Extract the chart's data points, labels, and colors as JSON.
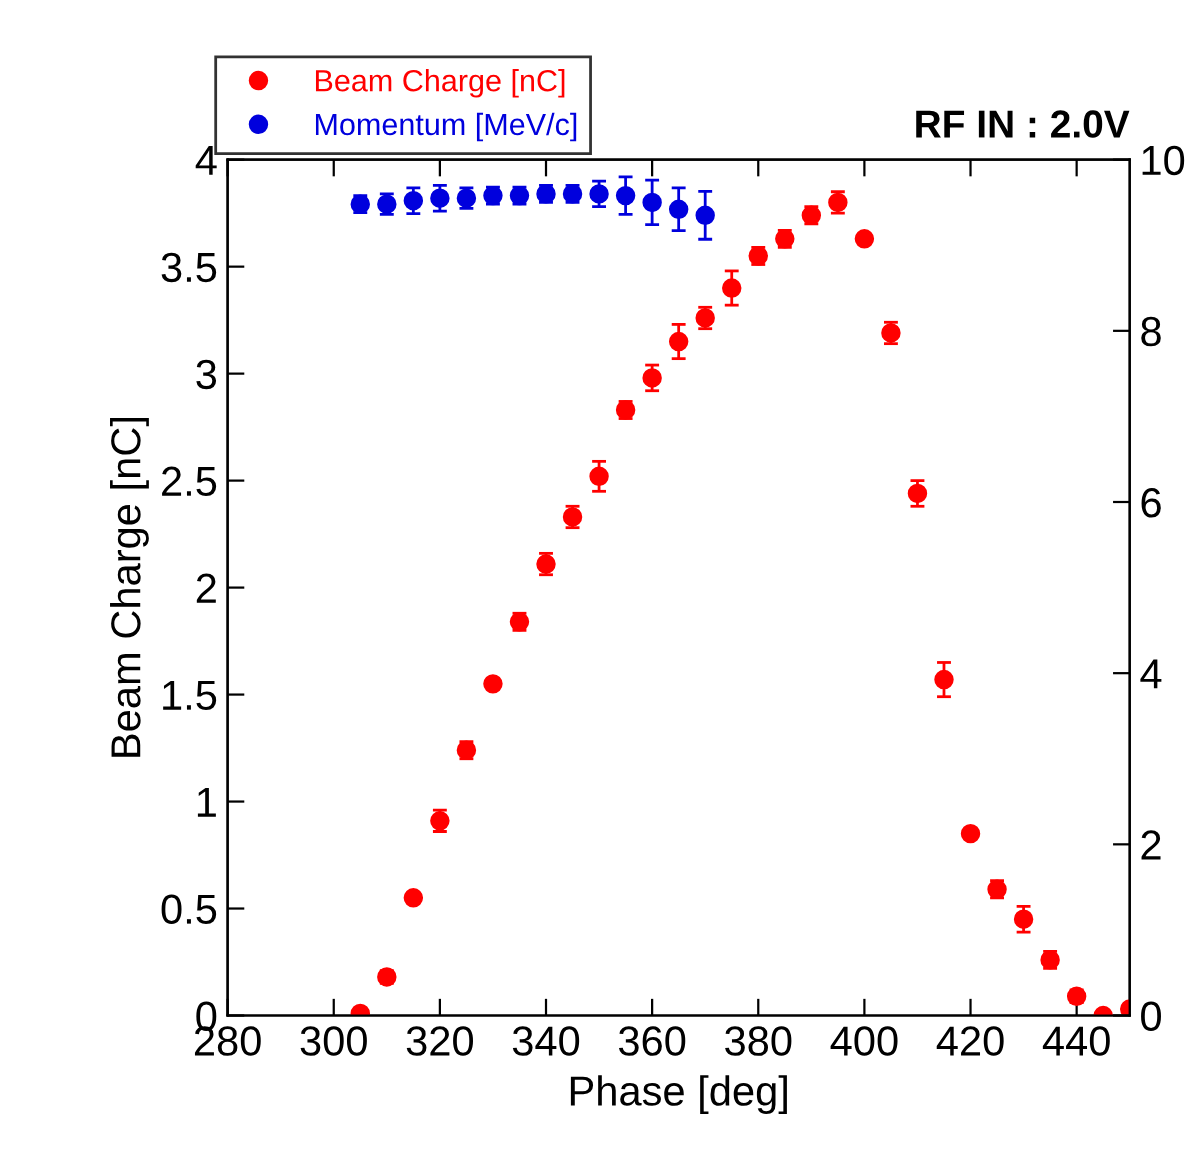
{
  "chart_data": {
    "type": "scatter",
    "title": "RF IN : 2.0V",
    "xlabel": "Phase [deg]",
    "ylabel": "Beam Charge [nC]",
    "x": [
      305,
      310,
      315,
      320,
      325,
      330,
      335,
      340,
      345,
      350,
      355,
      360,
      365,
      370,
      375,
      380,
      385,
      390,
      395,
      400,
      405,
      410,
      415,
      420,
      425,
      430,
      435,
      440,
      445,
      450
    ],
    "series": [
      {
        "name": "Beam Charge [nC]",
        "color": "#ff0000",
        "values": [
          0.01,
          0.18,
          0.55,
          0.91,
          1.24,
          1.55,
          1.84,
          2.11,
          2.33,
          2.52,
          2.83,
          2.98,
          3.15,
          3.26,
          3.4,
          3.55,
          3.63,
          3.74,
          3.8,
          3.63,
          3.19,
          2.44,
          1.57,
          0.85,
          0.59,
          0.45,
          0.26,
          0.09,
          0.0,
          0.03
        ],
        "errors": [
          0.02,
          0.03,
          0.02,
          0.05,
          0.04,
          0.02,
          0.04,
          0.05,
          0.05,
          0.07,
          0.04,
          0.06,
          0.08,
          0.05,
          0.08,
          0.04,
          0.04,
          0.04,
          0.05,
          0.02,
          0.05,
          0.06,
          0.08,
          0.02,
          0.04,
          0.06,
          0.04,
          0.03,
          0.02,
          0.02
        ]
      },
      {
        "name": "Momentum [MeV/c]",
        "color": "#0000dd",
        "axis": "y2",
        "x": [
          305,
          310,
          315,
          320,
          325,
          330,
          335,
          340,
          345,
          350,
          355,
          360,
          365,
          370
        ],
        "values": [
          9.48,
          9.48,
          9.52,
          9.55,
          9.55,
          9.58,
          9.58,
          9.6,
          9.6,
          9.6,
          9.58,
          9.5,
          9.42,
          9.35
        ],
        "errors": [
          0.1,
          0.12,
          0.15,
          0.15,
          0.12,
          0.1,
          0.1,
          0.1,
          0.1,
          0.15,
          0.22,
          0.26,
          0.25,
          0.28
        ]
      }
    ],
    "xlim": [
      280,
      450
    ],
    "xticks": [
      280,
      300,
      320,
      340,
      360,
      380,
      400,
      420,
      440
    ],
    "ylim": [
      0,
      4
    ],
    "yticks": [
      0,
      0.5,
      1,
      1.5,
      2,
      2.5,
      3,
      3.5,
      4
    ],
    "y2lim": [
      0,
      10
    ],
    "y2ticks": [
      0,
      2,
      4,
      6,
      8,
      10
    ],
    "marker": "circle",
    "grid": false,
    "legend": "top left"
  }
}
